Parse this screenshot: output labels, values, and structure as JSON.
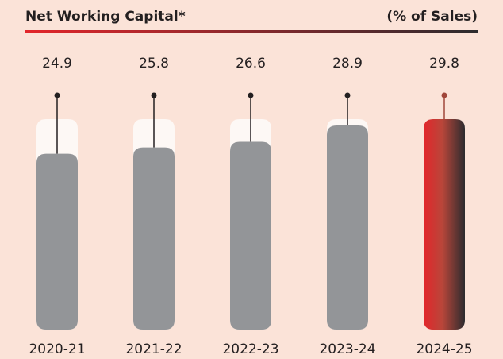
{
  "chart_data": {
    "type": "bar",
    "title": "Net Working Capital*",
    "subtitle": "(% of Sales)",
    "categories": [
      "2020-21",
      "2021-22",
      "2022-23",
      "2023-24",
      "2024-25"
    ],
    "values": [
      24.9,
      25.8,
      26.6,
      28.9,
      29.8
    ],
    "color": "#939598"
  }
}
